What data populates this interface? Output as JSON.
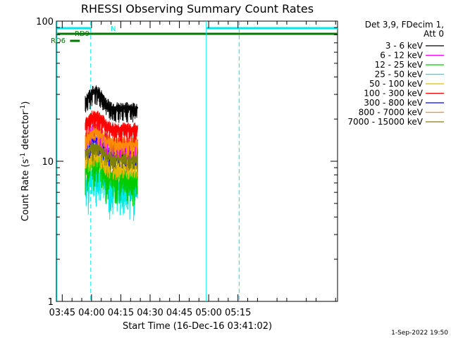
{
  "chart_data": {
    "type": "line",
    "title": "RHESSI Observing Summary Count Rates",
    "xlabel": "Start Time (16-Dec-16 03:41:02)",
    "ylabel_main": "Count Rate (s",
    "ylabel_sup1": "-1",
    "ylabel_mid": " detector",
    "ylabel_sup2": "-1",
    "ylabel_end": ")",
    "yscale": "log",
    "ylim": [
      1,
      100
    ],
    "xlim_minutes": [
      222,
      366
    ],
    "x_ticks": [
      {
        "label": "03:45",
        "minute": 225
      },
      {
        "label": "04:00",
        "minute": 240
      },
      {
        "label": "04:15",
        "minute": 255
      },
      {
        "label": "04:30",
        "minute": 270
      },
      {
        "label": "04:45",
        "minute": 285
      },
      {
        "label": "05:00",
        "minute": 300
      },
      {
        "label": "05:15",
        "minute": 315
      }
    ],
    "y_ticks": [
      {
        "label": "1",
        "value": 1
      },
      {
        "label": "10",
        "value": 10
      },
      {
        "label": "100",
        "value": 100
      }
    ],
    "legend_header": [
      "Det 3,9, FDecim 1,",
      "Att 0"
    ],
    "series": [
      {
        "name": "3 - 6 keV",
        "color": "#000000",
        "level": 24,
        "peak": 32
      },
      {
        "name": "6 - 12 keV",
        "color": "#ff00ff",
        "level": 13.2,
        "peak": 17
      },
      {
        "name": "12 - 25 keV",
        "color": "#00cc00",
        "level": 8,
        "peak": 10.5
      },
      {
        "name": "25 - 50 keV",
        "color": "#00e8e8",
        "level": 6.6,
        "peak": 8.2
      },
      {
        "name": "50 - 100 keV",
        "color": "#e6b800",
        "level": 9.2,
        "peak": 11.5
      },
      {
        "name": "100 - 300 keV",
        "color": "#ff0000",
        "level": 17.2,
        "peak": 21.5
      },
      {
        "name": "300 - 800 keV",
        "color": "#0000ff",
        "level": 11.3,
        "peak": 14
      },
      {
        "name": "800 - 7000 keV",
        "color": "#ff8c00",
        "level": 13.6,
        "peak": 16.5
      },
      {
        "name": "7000 - 15000 keV",
        "color": "#808000",
        "level": 10.6,
        "peak": 13
      }
    ],
    "data_window_minutes": [
      236.8,
      263.6
    ],
    "flag_labels": {
      "n": "N",
      "rd9": "RD9",
      "rd6": "RD6"
    },
    "vertical_lines_minutes": {
      "solid": [
        222.3,
        298.8
      ],
      "dashed": [
        239.6,
        315.6
      ]
    },
    "footer_date": "1-Sep-2022 19:50",
    "colors": {
      "flag_green": "#007700",
      "flag_cyan": "#00e8e8"
    }
  }
}
